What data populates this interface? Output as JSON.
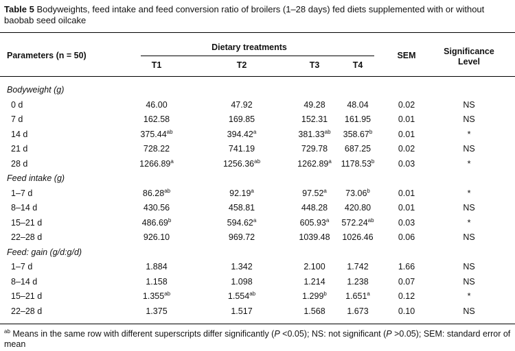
{
  "caption": {
    "label": "Table 5",
    "text": " Bodyweights, feed intake and feed conversion ratio of broilers (1–28 days) fed diets supplemented with or without baobab seed oilcake"
  },
  "header": {
    "parameters": "Parameters (n = 50)",
    "dietary": "Dietary treatments",
    "t1": "T1",
    "t2": "T2",
    "t3": "T3",
    "t4": "T4",
    "sem": "SEM",
    "significance_line1": "Significance",
    "significance_line2": "Level"
  },
  "sections": [
    {
      "title": "Bodyweight (g)",
      "rows": [
        {
          "param": "0 d",
          "t1": "46.00",
          "t1s": "",
          "t2": "47.92",
          "t2s": "",
          "t3": "49.28",
          "t3s": "",
          "t4": "48.04",
          "t4s": "",
          "sem": "0.02",
          "sig": "NS"
        },
        {
          "param": "7 d",
          "t1": "162.58",
          "t1s": "",
          "t2": "169.85",
          "t2s": "",
          "t3": "152.31",
          "t3s": "",
          "t4": "161.95",
          "t4s": "",
          "sem": "0.01",
          "sig": "NS"
        },
        {
          "param": "14 d",
          "t1": "375.44",
          "t1s": "ab",
          "t2": "394.42",
          "t2s": "a",
          "t3": "381.33",
          "t3s": "ab",
          "t4": "358.67",
          "t4s": "b",
          "sem": "0.01",
          "sig": "*"
        },
        {
          "param": "21 d",
          "t1": "728.22",
          "t1s": "",
          "t2": "741.19",
          "t2s": "",
          "t3": "729.78",
          "t3s": "",
          "t4": "687.25",
          "t4s": "",
          "sem": "0.02",
          "sig": "NS"
        },
        {
          "param": "28 d",
          "t1": "1266.89",
          "t1s": "a",
          "t2": "1256.36",
          "t2s": "ab",
          "t3": "1262.89",
          "t3s": "a",
          "t4": "1178.53",
          "t4s": "b",
          "sem": "0.03",
          "sig": "*"
        }
      ]
    },
    {
      "title": "Feed intake (g)",
      "rows": [
        {
          "param": "1–7 d",
          "t1": "86.28",
          "t1s": "ab",
          "t2": "92.19",
          "t2s": "a",
          "t3": "97.52",
          "t3s": "a",
          "t4": "73.06",
          "t4s": "b",
          "sem": "0.01",
          "sig": "*"
        },
        {
          "param": "8–14 d",
          "t1": "430.56",
          "t1s": "",
          "t2": "458.81",
          "t2s": "",
          "t3": "448.28",
          "t3s": "",
          "t4": "420.80",
          "t4s": "",
          "sem": "0.01",
          "sig": "NS"
        },
        {
          "param": "15–21 d",
          "t1": "486.69",
          "t1s": "b",
          "t2": "594.62",
          "t2s": "a",
          "t3": "605.93",
          "t3s": "a",
          "t4": "572.24",
          "t4s": "ab",
          "sem": "0.03",
          "sig": "*"
        },
        {
          "param": "22–28 d",
          "t1": "926.10",
          "t1s": "",
          "t2": "969.72",
          "t2s": "",
          "t3": "1039.48",
          "t3s": "",
          "t4": "1026.46",
          "t4s": "",
          "sem": "0.06",
          "sig": "NS"
        }
      ]
    },
    {
      "title": "Feed: gain (g/d:g/d)",
      "rows": [
        {
          "param": "1–7 d",
          "t1": "1.884",
          "t1s": "",
          "t2": "1.342",
          "t2s": "",
          "t3": "2.100",
          "t3s": "",
          "t4": "1.742",
          "t4s": "",
          "sem": "1.66",
          "sig": "NS"
        },
        {
          "param": "8–14 d",
          "t1": "1.158",
          "t1s": "",
          "t2": "1.098",
          "t2s": "",
          "t3": "1.214",
          "t3s": "",
          "t4": "1.238",
          "t4s": "",
          "sem": "0.07",
          "sig": "NS"
        },
        {
          "param": "15–21 d",
          "t1": "1.355",
          "t1s": "ab",
          "t2": "1.554",
          "t2s": "ab",
          "t3": "1.299",
          "t3s": "b",
          "t4": "1.651",
          "t4s": "a",
          "sem": "0.12",
          "sig": "*"
        },
        {
          "param": "22–28 d",
          "t1": "1.375",
          "t1s": "",
          "t2": "1.517",
          "t2s": "",
          "t3": "1.568",
          "t3s": "",
          "t4": "1.673",
          "t4s": "",
          "sem": "0.10",
          "sig": "NS"
        }
      ]
    }
  ],
  "footnote": {
    "sup": "ab",
    "part1": " Means in the same row with different superscripts differ significantly (",
    "p1": "P",
    "part2": " <0.05); NS: not significant (",
    "p2": "P",
    "part3": " >0.05); SEM: standard error of mean"
  }
}
